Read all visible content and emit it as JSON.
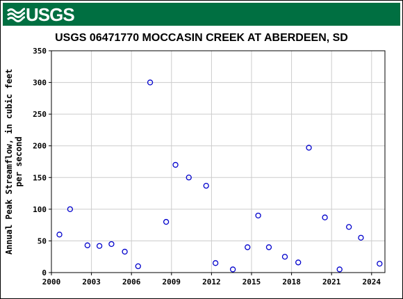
{
  "header": {
    "logo_text": "USGS",
    "brand_color": "#006f41"
  },
  "chart_data": {
    "type": "scatter",
    "title": "USGS 06471770 MOCCASIN CREEK AT ABERDEEN, SD",
    "xlabel": "",
    "ylabel_lines": [
      "Annual Peak Streamflow, in cubic feet",
      "per second"
    ],
    "xlim": [
      2000,
      2025
    ],
    "ylim": [
      0,
      350
    ],
    "x_ticks": [
      2000,
      2003,
      2006,
      2009,
      2012,
      2015,
      2018,
      2021,
      2024
    ],
    "y_ticks": [
      0,
      50,
      100,
      150,
      200,
      250,
      300,
      350
    ],
    "grid": true,
    "marker": "open-circle",
    "marker_color": "#0000cc",
    "series": [
      {
        "points": [
          {
            "x": 2000.6,
            "y": 60
          },
          {
            "x": 2001.4,
            "y": 100
          },
          {
            "x": 2002.7,
            "y": 43
          },
          {
            "x": 2003.6,
            "y": 42
          },
          {
            "x": 2004.5,
            "y": 45
          },
          {
            "x": 2005.5,
            "y": 33
          },
          {
            "x": 2006.5,
            "y": 10
          },
          {
            "x": 2007.4,
            "y": 300
          },
          {
            "x": 2008.6,
            "y": 80
          },
          {
            "x": 2009.3,
            "y": 170
          },
          {
            "x": 2010.3,
            "y": 150
          },
          {
            "x": 2011.6,
            "y": 137
          },
          {
            "x": 2012.3,
            "y": 15
          },
          {
            "x": 2013.6,
            "y": 5
          },
          {
            "x": 2014.7,
            "y": 40
          },
          {
            "x": 2015.5,
            "y": 90
          },
          {
            "x": 2016.3,
            "y": 40
          },
          {
            "x": 2017.5,
            "y": 25
          },
          {
            "x": 2018.5,
            "y": 16
          },
          {
            "x": 2019.3,
            "y": 197
          },
          {
            "x": 2020.5,
            "y": 87
          },
          {
            "x": 2021.6,
            "y": 5
          },
          {
            "x": 2022.3,
            "y": 72
          },
          {
            "x": 2023.2,
            "y": 55
          },
          {
            "x": 2024.6,
            "y": 14
          }
        ]
      }
    ]
  }
}
